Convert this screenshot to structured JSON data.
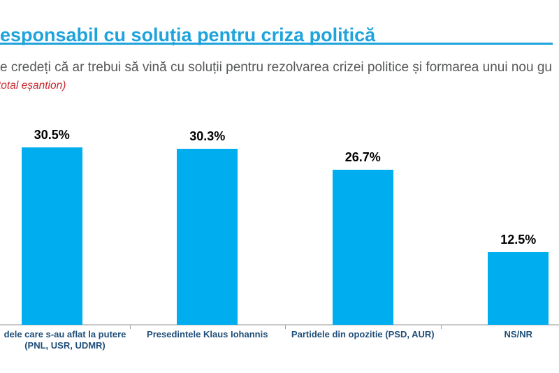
{
  "header": {
    "title": "esponsabil cu soluția pentru criza politică",
    "title_color": "#1fa3dc",
    "underline_color": "#1fa3dc"
  },
  "question": {
    "text": "e credeți că ar trebui să vină cu soluții pentru rezolvarea crizei politice și formarea unui nou gu",
    "color": "#57585a"
  },
  "note": {
    "text": "total eșantion)",
    "color": "#c9262d"
  },
  "chart_data": {
    "type": "bar",
    "title": "esponsabil cu soluția pentru criza politică",
    "categories": [
      "dele care s-au aflat la putere (PNL, USR, UDMR)",
      "Presedintele Klaus Iohannis",
      "Partidele din opozitie (PSD, AUR)",
      "NS/NR"
    ],
    "category_lines": [
      [
        "dele care s-au aflat la putere",
        "(PNL, USR, UDMR)"
      ],
      [
        "Presedintele Klaus Iohannis"
      ],
      [
        "Partidele din opozitie (PSD, AUR)"
      ],
      [
        "NS/NR"
      ]
    ],
    "values": [
      30.5,
      30.3,
      26.7,
      12.5
    ],
    "value_labels": [
      "30.5%",
      "30.3%",
      "26.7%",
      "12.5%"
    ],
    "unit": "%",
    "bar_color": "#00aeef",
    "value_label_color": "#000000",
    "category_label_color": "#1f4e79",
    "axis_line_color": "#c9c9c9",
    "tick_color": "#9e9e9e",
    "ylim": [
      0,
      35
    ],
    "grid": false,
    "legend": false,
    "orientation": "vertical",
    "value_labels_position": "above-bars"
  }
}
